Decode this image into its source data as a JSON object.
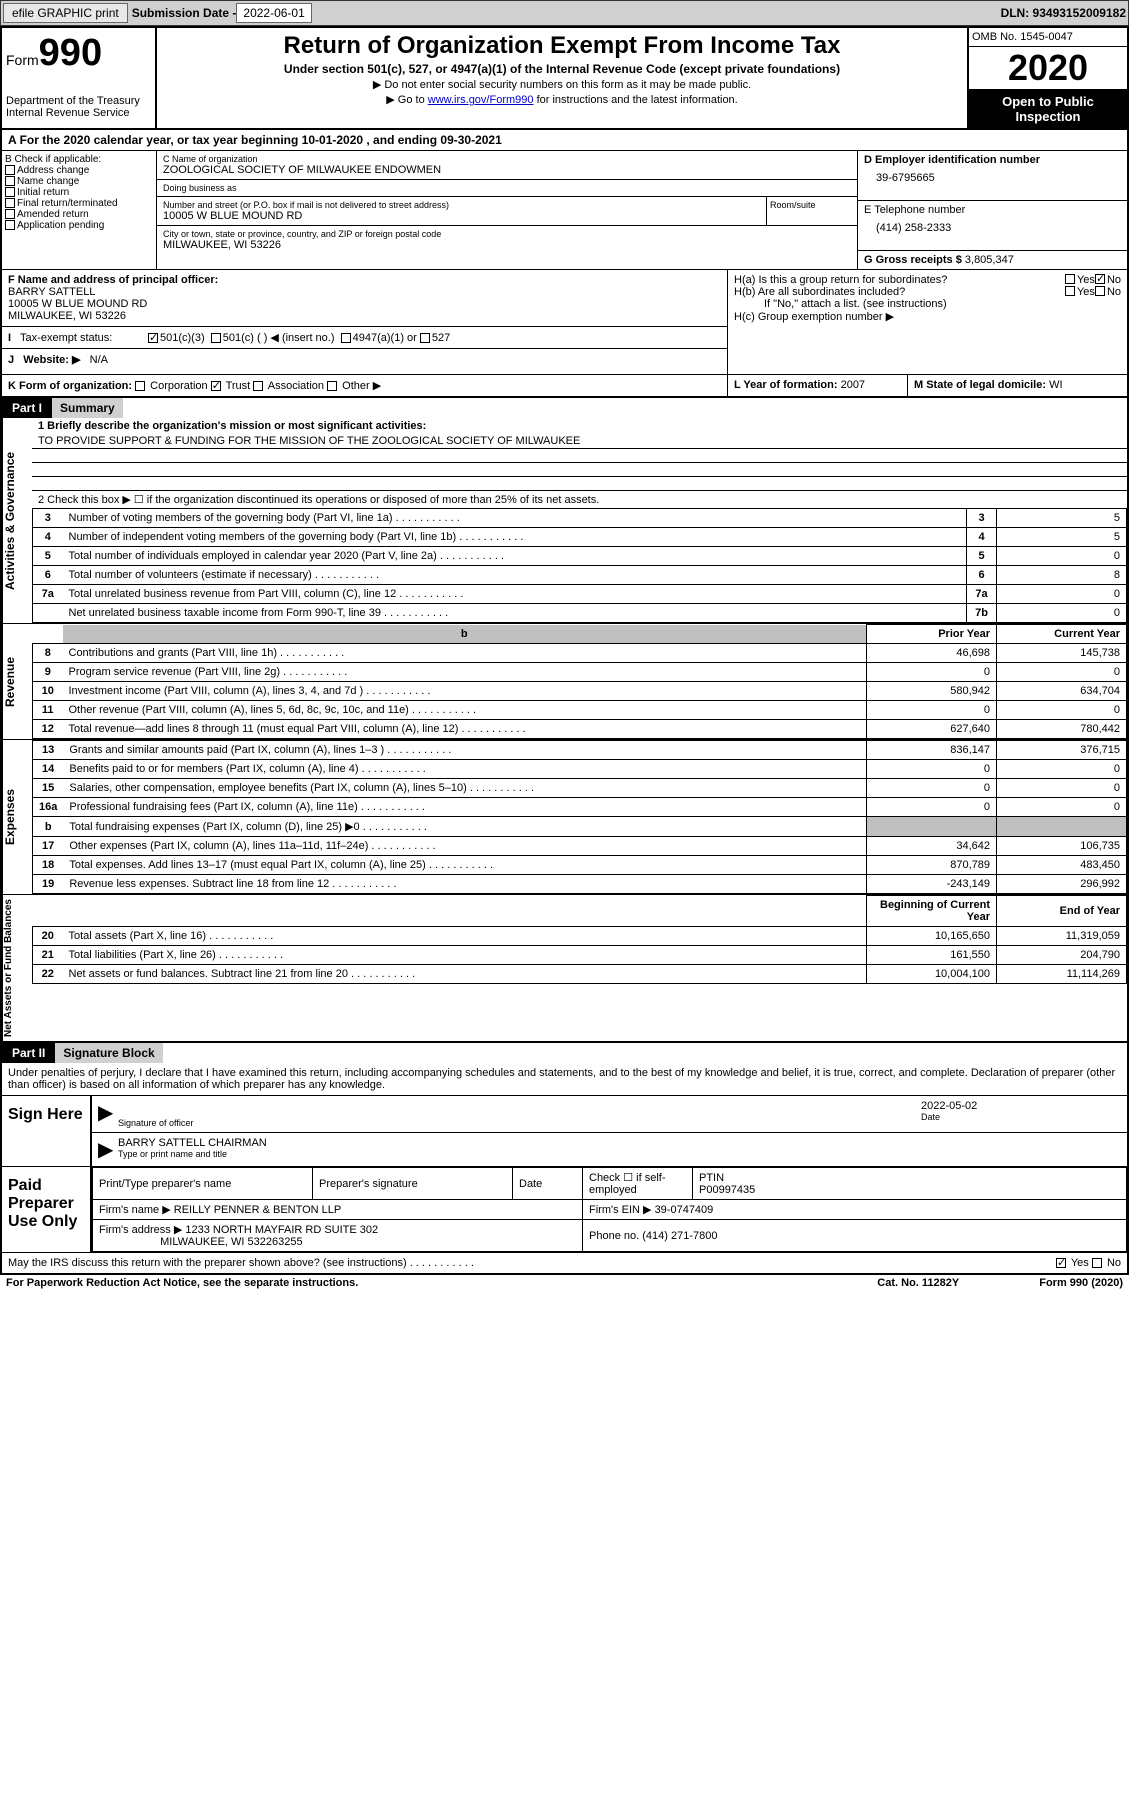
{
  "toolbar": {
    "efile": "efile GRAPHIC print",
    "sub_label": "Submission Date - 2022-06-01",
    "dln": "DLN: 93493152009182"
  },
  "header": {
    "form_word": "Form",
    "form_num": "990",
    "dept": "Department of the Treasury\nInternal Revenue Service",
    "title": "Return of Organization Exempt From Income Tax",
    "subtitle": "Under section 501(c), 527, or 4947(a)(1) of the Internal Revenue Code (except private foundations)",
    "note1": "▶ Do not enter social security numbers on this form as it may be made public.",
    "note2_pre": "▶ Go to ",
    "note2_link": "www.irs.gov/Form990",
    "note2_post": " for instructions and the latest information.",
    "omb": "OMB No. 1545-0047",
    "year": "2020",
    "inspection": "Open to Public Inspection"
  },
  "period": "For the 2020 calendar year, or tax year beginning 10-01-2020    , and ending 09-30-2021",
  "box_b": {
    "label": "B Check if applicable:",
    "opts": [
      "Address change",
      "Name change",
      "Initial return",
      "Final return/terminated",
      "Amended return",
      "Application pending"
    ]
  },
  "box_c": {
    "name_label": "C Name of organization",
    "name": "ZOOLOGICAL SOCIETY OF MILWAUKEE ENDOWMEN",
    "dba_label": "Doing business as",
    "dba": "",
    "addr_label": "Number and street (or P.O. box if mail is not delivered to street address)",
    "addr": "10005 W BLUE MOUND RD",
    "suite_label": "Room/suite",
    "city_label": "City or town, state or province, country, and ZIP or foreign postal code",
    "city": "MILWAUKEE, WI  53226"
  },
  "box_d": {
    "label": "D Employer identification number",
    "val": "39-6795665"
  },
  "box_e": {
    "label": "E Telephone number",
    "val": "(414) 258-2333"
  },
  "box_g": {
    "label": "G Gross receipts $",
    "val": "3,805,347"
  },
  "box_f": {
    "label": "F  Name and address of principal officer:",
    "name": "BARRY SATTELL",
    "addr1": "10005 W BLUE MOUND RD",
    "addr2": "MILWAUKEE, WI  53226"
  },
  "box_h": {
    "a": "H(a)  Is this a group return for subordinates?",
    "b": "H(b)  Are all subordinates included?",
    "b_note": "If \"No,\" attach a list. (see instructions)",
    "c": "H(c)  Group exemption number ▶"
  },
  "tax_status": {
    "label": "Tax-exempt status:",
    "opt1": "501(c)(3)",
    "opt2": "501(c) (   ) ◀ (insert no.)",
    "opt3": "4947(a)(1) or",
    "opt4": "527"
  },
  "row_i": {
    "label": "I",
    "text": "Website: ▶",
    "val": "N/A"
  },
  "row_j": {
    "label": "J"
  },
  "row_k": {
    "label": "K Form of organization:",
    "opts": [
      "Corporation",
      "Trust",
      "Association",
      "Other ▶"
    ]
  },
  "row_l": {
    "label": "L Year of formation:",
    "val": "2007"
  },
  "row_m": {
    "label": "M State of legal domicile:",
    "val": "WI"
  },
  "part1": {
    "tag": "Part I",
    "title": "Summary"
  },
  "summary": {
    "side1": "Activities & Governance",
    "side2": "Revenue",
    "side3": "Expenses",
    "side4": "Net Assets or Fund Balances",
    "q1": "1   Briefly describe the organization's mission or most significant activities:",
    "mission": "TO PROVIDE SUPPORT & FUNDING FOR THE MISSION OF THE ZOOLOGICAL SOCIETY OF MILWAUKEE",
    "q2": "2    Check this box ▶ ☐  if the organization discontinued its operations or disposed of more than 25% of its net assets.",
    "lines_gov": [
      {
        "n": "3",
        "d": "Number of voting members of the governing body (Part VI, line 1a)",
        "bn": "3",
        "v": "5"
      },
      {
        "n": "4",
        "d": "Number of independent voting members of the governing body (Part VI, line 1b)",
        "bn": "4",
        "v": "5"
      },
      {
        "n": "5",
        "d": "Total number of individuals employed in calendar year 2020 (Part V, line 2a)",
        "bn": "5",
        "v": "0"
      },
      {
        "n": "6",
        "d": "Total number of volunteers (estimate if necessary)",
        "bn": "6",
        "v": "8"
      },
      {
        "n": "7a",
        "d": "Total unrelated business revenue from Part VIII, column (C), line 12",
        "bn": "7a",
        "v": "0"
      },
      {
        "n": "",
        "d": "Net unrelated business taxable income from Form 990-T, line 39",
        "bn": "7b",
        "v": "0"
      }
    ],
    "col_prior": "Prior Year",
    "col_current": "Current Year",
    "lines_rev": [
      {
        "n": "8",
        "d": "Contributions and grants (Part VIII, line 1h)",
        "p": "46,698",
        "c": "145,738"
      },
      {
        "n": "9",
        "d": "Program service revenue (Part VIII, line 2g)",
        "p": "0",
        "c": "0"
      },
      {
        "n": "10",
        "d": "Investment income (Part VIII, column (A), lines 3, 4, and 7d )",
        "p": "580,942",
        "c": "634,704"
      },
      {
        "n": "11",
        "d": "Other revenue (Part VIII, column (A), lines 5, 6d, 8c, 9c, 10c, and 11e)",
        "p": "0",
        "c": "0"
      },
      {
        "n": "12",
        "d": "Total revenue—add lines 8 through 11 (must equal Part VIII, column (A), line 12)",
        "p": "627,640",
        "c": "780,442"
      }
    ],
    "lines_exp": [
      {
        "n": "13",
        "d": "Grants and similar amounts paid (Part IX, column (A), lines 1–3 )",
        "p": "836,147",
        "c": "376,715"
      },
      {
        "n": "14",
        "d": "Benefits paid to or for members (Part IX, column (A), line 4)",
        "p": "0",
        "c": "0"
      },
      {
        "n": "15",
        "d": "Salaries, other compensation, employee benefits (Part IX, column (A), lines 5–10)",
        "p": "0",
        "c": "0"
      },
      {
        "n": "16a",
        "d": "Professional fundraising fees (Part IX, column (A), line 11e)",
        "p": "0",
        "c": "0"
      },
      {
        "n": "b",
        "d": "Total fundraising expenses (Part IX, column (D), line 25) ▶0",
        "p": "",
        "c": "",
        "gray": true
      },
      {
        "n": "17",
        "d": "Other expenses (Part IX, column (A), lines 11a–11d, 11f–24e)",
        "p": "34,642",
        "c": "106,735"
      },
      {
        "n": "18",
        "d": "Total expenses. Add lines 13–17 (must equal Part IX, column (A), line 25)",
        "p": "870,789",
        "c": "483,450"
      },
      {
        "n": "19",
        "d": "Revenue less expenses. Subtract line 18 from line 12",
        "p": "-243,149",
        "c": "296,992"
      }
    ],
    "col_begin": "Beginning of Current Year",
    "col_end": "End of Year",
    "lines_net": [
      {
        "n": "20",
        "d": "Total assets (Part X, line 16)",
        "p": "10,165,650",
        "c": "11,319,059"
      },
      {
        "n": "21",
        "d": "Total liabilities (Part X, line 26)",
        "p": "161,550",
        "c": "204,790"
      },
      {
        "n": "22",
        "d": "Net assets or fund balances. Subtract line 21 from line 20",
        "p": "10,004,100",
        "c": "11,114,269"
      }
    ]
  },
  "part2": {
    "tag": "Part II",
    "title": "Signature Block"
  },
  "sig": {
    "perjury": "Under penalties of perjury, I declare that I have examined this return, including accompanying schedules and statements, and to the best of my knowledge and belief, it is true, correct, and complete. Declaration of preparer (other than officer) is based on all information of which preparer has any knowledge.",
    "sign_here": "Sign Here",
    "sig_label": "Signature of officer",
    "date_label": "Date",
    "date": "2022-05-02",
    "name": "BARRY SATTELL  CHAIRMAN",
    "name_label": "Type or print name and title",
    "paid": "Paid Preparer Use Only",
    "h1": "Print/Type preparer's name",
    "h2": "Preparer's signature",
    "h3": "Date",
    "h4_pre": "Check ☐ if self-employed",
    "h5": "PTIN",
    "ptin": "P00997435",
    "firm_label": "Firm's name    ▶",
    "firm": "REILLY PENNER & BENTON LLP",
    "ein_label": "Firm's EIN ▶",
    "ein": "39-0747409",
    "addr_label": "Firm's address ▶",
    "addr1": "1233 NORTH MAYFAIR RD SUITE 302",
    "addr2": "MILWAUKEE, WI  532263255",
    "phone_label": "Phone no.",
    "phone": "(414) 271-7800",
    "discuss": "May the IRS discuss this return with the preparer shown above? (see instructions)",
    "yes": "Yes",
    "no": "No"
  },
  "footer": {
    "left": "For Paperwork Reduction Act Notice, see the separate instructions.",
    "mid": "Cat. No. 11282Y",
    "right": "Form 990 (2020)"
  }
}
